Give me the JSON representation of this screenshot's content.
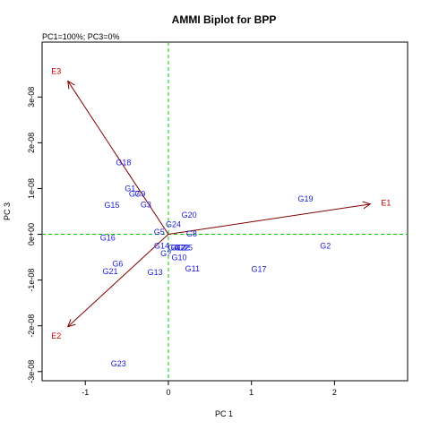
{
  "chart_data": {
    "type": "scatter",
    "title": "AMMI Biplot for BPP",
    "subtitle": "PC1=100%; PC3=0%",
    "xlabel": "PC 1",
    "ylabel": "PC 3",
    "xlim": [
      -1.52,
      2.88
    ],
    "ylim": [
      -3.2e-08,
      4.2e-08
    ],
    "x_ticks": [
      {
        "value": -1,
        "label": "-1"
      },
      {
        "value": 0,
        "label": "0"
      },
      {
        "value": 1,
        "label": "1"
      },
      {
        "value": 2,
        "label": "2"
      }
    ],
    "y_ticks": [
      {
        "value": -3e-08,
        "label": "-3e-08"
      },
      {
        "value": -2e-08,
        "label": "-2e-08"
      },
      {
        "value": -1e-08,
        "label": "-1e-08"
      },
      {
        "value": 0,
        "label": "0e+00"
      },
      {
        "value": 1e-08,
        "label": "1e-08"
      },
      {
        "value": 2e-08,
        "label": "2e-08"
      },
      {
        "value": 3e-08,
        "label": "3e-08"
      }
    ],
    "reference_lines": {
      "x": 0,
      "y": 0,
      "color": "#00cc00",
      "style": "dashed"
    },
    "genotypes": {
      "color": "#1a1adb",
      "points": [
        {
          "label": "G18",
          "x": -0.54,
          "y": 1.57e-08
        },
        {
          "label": "G1",
          "x": -0.46,
          "y": 1e-08
        },
        {
          "label": "G7",
          "x": -0.41,
          "y": 8.8e-09
        },
        {
          "label": "G9",
          "x": -0.34,
          "y": 8.8e-09
        },
        {
          "label": "G15",
          "x": -0.68,
          "y": 6.4e-09
        },
        {
          "label": "G3",
          "x": -0.27,
          "y": 6.5e-09
        },
        {
          "label": "G19",
          "x": 1.65,
          "y": 7.7e-09
        },
        {
          "label": "G20",
          "x": 0.25,
          "y": 4.2e-09
        },
        {
          "label": "G24",
          "x": 0.06,
          "y": 2.2e-09
        },
        {
          "label": "G5",
          "x": -0.11,
          "y": 5e-10
        },
        {
          "label": "G8",
          "x": 0.28,
          "y": 1e-10
        },
        {
          "label": "G16",
          "x": -0.73,
          "y": -8e-10
        },
        {
          "label": "G2",
          "x": 1.89,
          "y": -2.5e-09
        },
        {
          "label": "G14",
          "x": -0.08,
          "y": -2.5e-09
        },
        {
          "label": "G4",
          "x": 0.06,
          "y": -2.9e-09
        },
        {
          "label": "G12",
          "x": 0.12,
          "y": -2.9e-09
        },
        {
          "label": "G22",
          "x": 0.16,
          "y": -2.9e-09
        },
        {
          "label": "G25",
          "x": 0.2,
          "y": -2.9e-09
        },
        {
          "label": "G?",
          "x": -0.03,
          "y": -4.2e-09
        },
        {
          "label": "G10",
          "x": 0.13,
          "y": -5.1e-09
        },
        {
          "label": "G6",
          "x": -0.61,
          "y": -6.5e-09
        },
        {
          "label": "G21",
          "x": -0.7,
          "y": -8.1e-09
        },
        {
          "label": "G13",
          "x": -0.16,
          "y": -8.3e-09
        },
        {
          "label": "G11",
          "x": 0.29,
          "y": -7.5e-09
        },
        {
          "label": "G17",
          "x": 1.09,
          "y": -7.6e-09
        },
        {
          "label": "G23",
          "x": -0.6,
          "y": -2.83e-08
        }
      ]
    },
    "environments": {
      "color": "#cc0000",
      "arrow_color": "#7f0000",
      "points": [
        {
          "label": "E1",
          "x": 2.43,
          "y": 6.6e-09,
          "label_x": 2.62,
          "label_y": 6.9e-09
        },
        {
          "label": "E2",
          "x": -1.21,
          "y": -2.02e-08,
          "label_x": -1.35,
          "label_y": -2.22e-08
        },
        {
          "label": "E3",
          "x": -1.21,
          "y": 3.35e-08,
          "label_x": -1.35,
          "label_y": 3.56e-08
        }
      ]
    }
  }
}
